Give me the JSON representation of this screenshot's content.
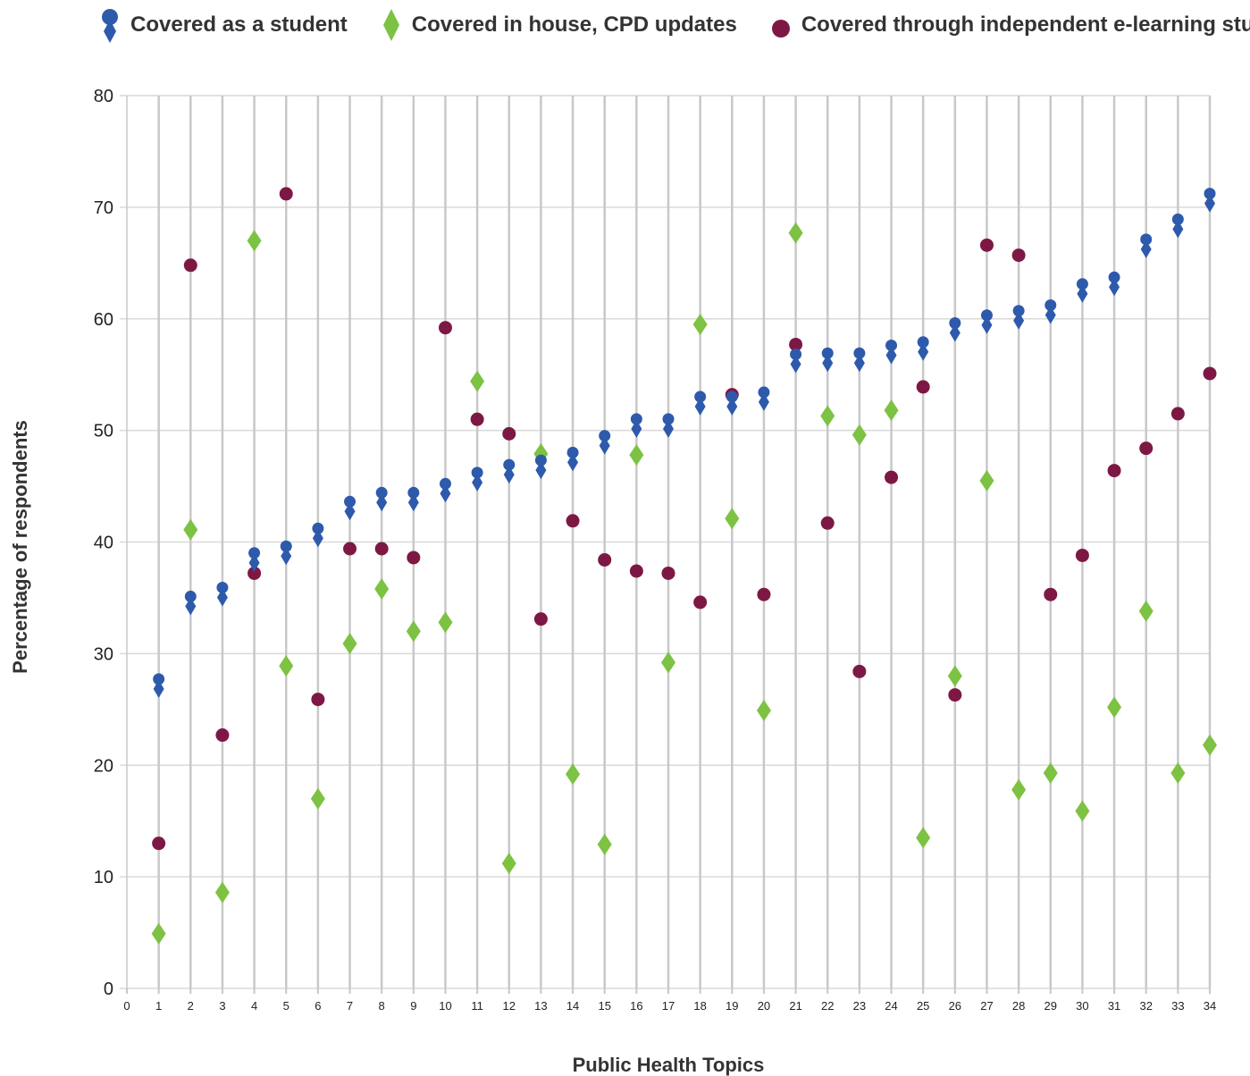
{
  "chart_data": {
    "type": "scatter",
    "title": "",
    "xlabel": "Public Health Topics",
    "ylabel": "Percentage of respondents",
    "xlim": [
      0,
      34
    ],
    "ylim": [
      0,
      80
    ],
    "x_ticks": [
      0,
      1,
      2,
      3,
      4,
      5,
      6,
      7,
      8,
      9,
      10,
      11,
      12,
      13,
      14,
      15,
      16,
      17,
      18,
      19,
      20,
      21,
      22,
      23,
      24,
      25,
      26,
      27,
      28,
      29,
      30,
      31,
      32,
      33,
      34
    ],
    "y_ticks": [
      0,
      10,
      20,
      30,
      40,
      50,
      60,
      70,
      80
    ],
    "grid": "vertical and horizontal",
    "legend_position": "top",
    "series": [
      {
        "name": "Covered as a student",
        "marker": "circle-over-diamond",
        "color": "#2e5aac",
        "x": [
          1,
          2,
          3,
          4,
          5,
          6,
          7,
          8,
          9,
          10,
          11,
          12,
          13,
          14,
          15,
          16,
          17,
          18,
          19,
          20,
          21,
          22,
          23,
          24,
          25,
          26,
          27,
          28,
          29,
          30,
          31,
          32,
          33,
          34
        ],
        "values": [
          27.4,
          34.8,
          35.6,
          38.7,
          39.3,
          40.9,
          43.3,
          44.1,
          44.1,
          44.9,
          45.9,
          46.6,
          47.0,
          47.7,
          49.2,
          50.7,
          50.7,
          52.7,
          52.7,
          53.1,
          56.5,
          56.6,
          56.6,
          57.3,
          57.6,
          59.3,
          60.0,
          60.4,
          60.9,
          62.8,
          63.4,
          66.8,
          68.6,
          70.9
        ]
      },
      {
        "name": "Covered in house, CPD updates",
        "marker": "diamond",
        "color": "#7dc243",
        "x": [
          1,
          2,
          3,
          4,
          5,
          6,
          7,
          8,
          9,
          10,
          11,
          12,
          13,
          14,
          15,
          16,
          17,
          18,
          19,
          20,
          21,
          22,
          23,
          24,
          25,
          26,
          27,
          28,
          29,
          30,
          31,
          32,
          33,
          34
        ],
        "values": [
          4.9,
          41.1,
          8.6,
          67.0,
          28.9,
          17.0,
          30.9,
          35.8,
          32.0,
          32.8,
          54.4,
          11.2,
          47.9,
          19.2,
          12.9,
          47.8,
          29.2,
          59.5,
          42.1,
          24.9,
          67.7,
          51.3,
          49.6,
          51.8,
          13.5,
          28.0,
          45.5,
          17.8,
          19.3,
          15.9,
          25.2,
          33.8,
          19.3,
          21.8
        ]
      },
      {
        "name": "Covered through independent e-learning study",
        "marker": "circle",
        "color": "#7d1845",
        "x": [
          1,
          2,
          3,
          4,
          5,
          6,
          7,
          8,
          9,
          10,
          11,
          12,
          13,
          14,
          15,
          16,
          17,
          18,
          19,
          20,
          21,
          22,
          23,
          24,
          25,
          26,
          27,
          28,
          29,
          30,
          31,
          32,
          33,
          34
        ],
        "values": [
          13.0,
          64.8,
          22.7,
          37.2,
          71.2,
          25.9,
          39.4,
          39.4,
          38.6,
          59.2,
          51.0,
          49.7,
          33.1,
          41.9,
          38.4,
          37.4,
          37.2,
          34.6,
          53.2,
          35.3,
          57.7,
          41.7,
          28.4,
          45.8,
          53.9,
          26.3,
          66.6,
          65.7,
          35.3,
          38.8,
          46.4,
          48.4,
          51.5,
          55.1
        ]
      }
    ]
  }
}
